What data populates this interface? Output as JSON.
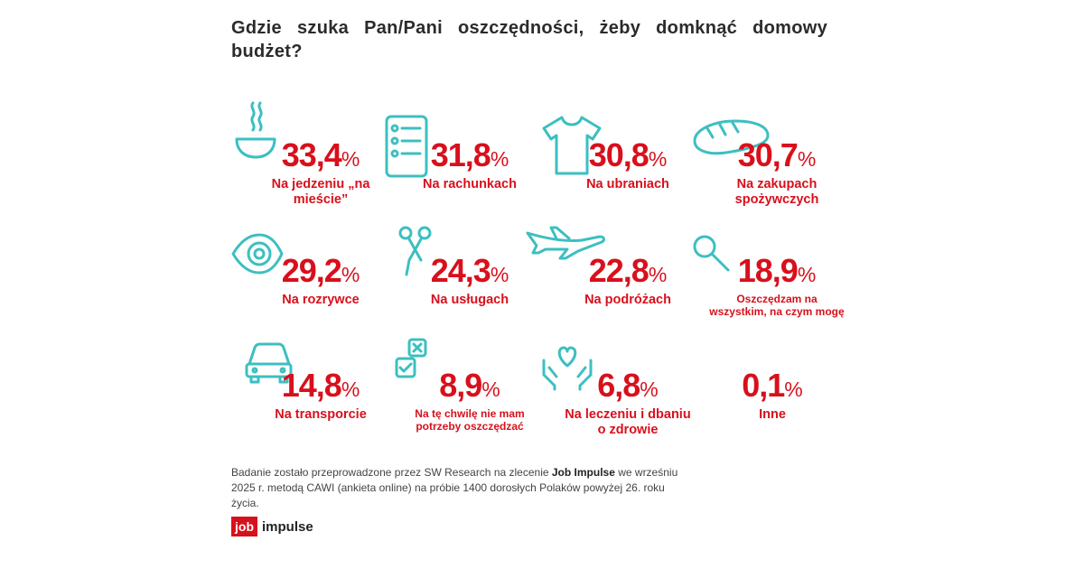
{
  "title": "Gdzie szuka Pan/Pani oszczędności, żeby domknąć domowy budżet?",
  "chart_data": {
    "type": "table",
    "title": "Gdzie szuka Pan/Pani oszczędności, żeby domknąć domowy budżet?",
    "unit": "%",
    "items": [
      {
        "value": "33,4",
        "label": "Na jedzeniu „na mieście”",
        "icon": "bowl-icon"
      },
      {
        "value": "31,8",
        "label": "Na rachunkach",
        "icon": "bill-list-icon"
      },
      {
        "value": "30,8",
        "label": "Na ubraniach",
        "icon": "tshirt-icon"
      },
      {
        "value": "30,7",
        "label": "Na zakupach spożywczych",
        "icon": "bread-icon"
      },
      {
        "value": "29,2",
        "label": "Na rozrywce",
        "icon": "eye-icon"
      },
      {
        "value": "24,3",
        "label": "Na usługach",
        "icon": "scissors-icon"
      },
      {
        "value": "22,8",
        "label": "Na podróżach",
        "icon": "airplane-icon"
      },
      {
        "value": "18,9",
        "label": "Oszczędzam na wszystkim, na czym mogę",
        "icon": "magnifier-icon"
      },
      {
        "value": "14,8",
        "label": "Na transporcie",
        "icon": "car-icon"
      },
      {
        "value": "8,9",
        "label": "Na tę chwilę nie mam potrzeby oszczędzać",
        "icon": "checkbox-icon"
      },
      {
        "value": "6,8",
        "label": "Na leczeniu i dbaniu o zdrowie",
        "icon": "heart-hands-icon"
      },
      {
        "value": "0,1",
        "label": "Inne",
        "icon": ""
      }
    ]
  },
  "note": {
    "before": "Badanie zostało przeprowadzone przez SW Research na zlecenie ",
    "bold": "Job Impulse",
    "after": " we wrześniu 2025 r. metodą CAWI (ankieta online) na próbie 1400 dorosłych Polaków powyżej 26. roku życia."
  },
  "logo": {
    "box": "job",
    "text": "impulse"
  },
  "colors": {
    "accent": "#d8101c",
    "icon": "#3cbfc1",
    "text": "#2b2b2b"
  }
}
